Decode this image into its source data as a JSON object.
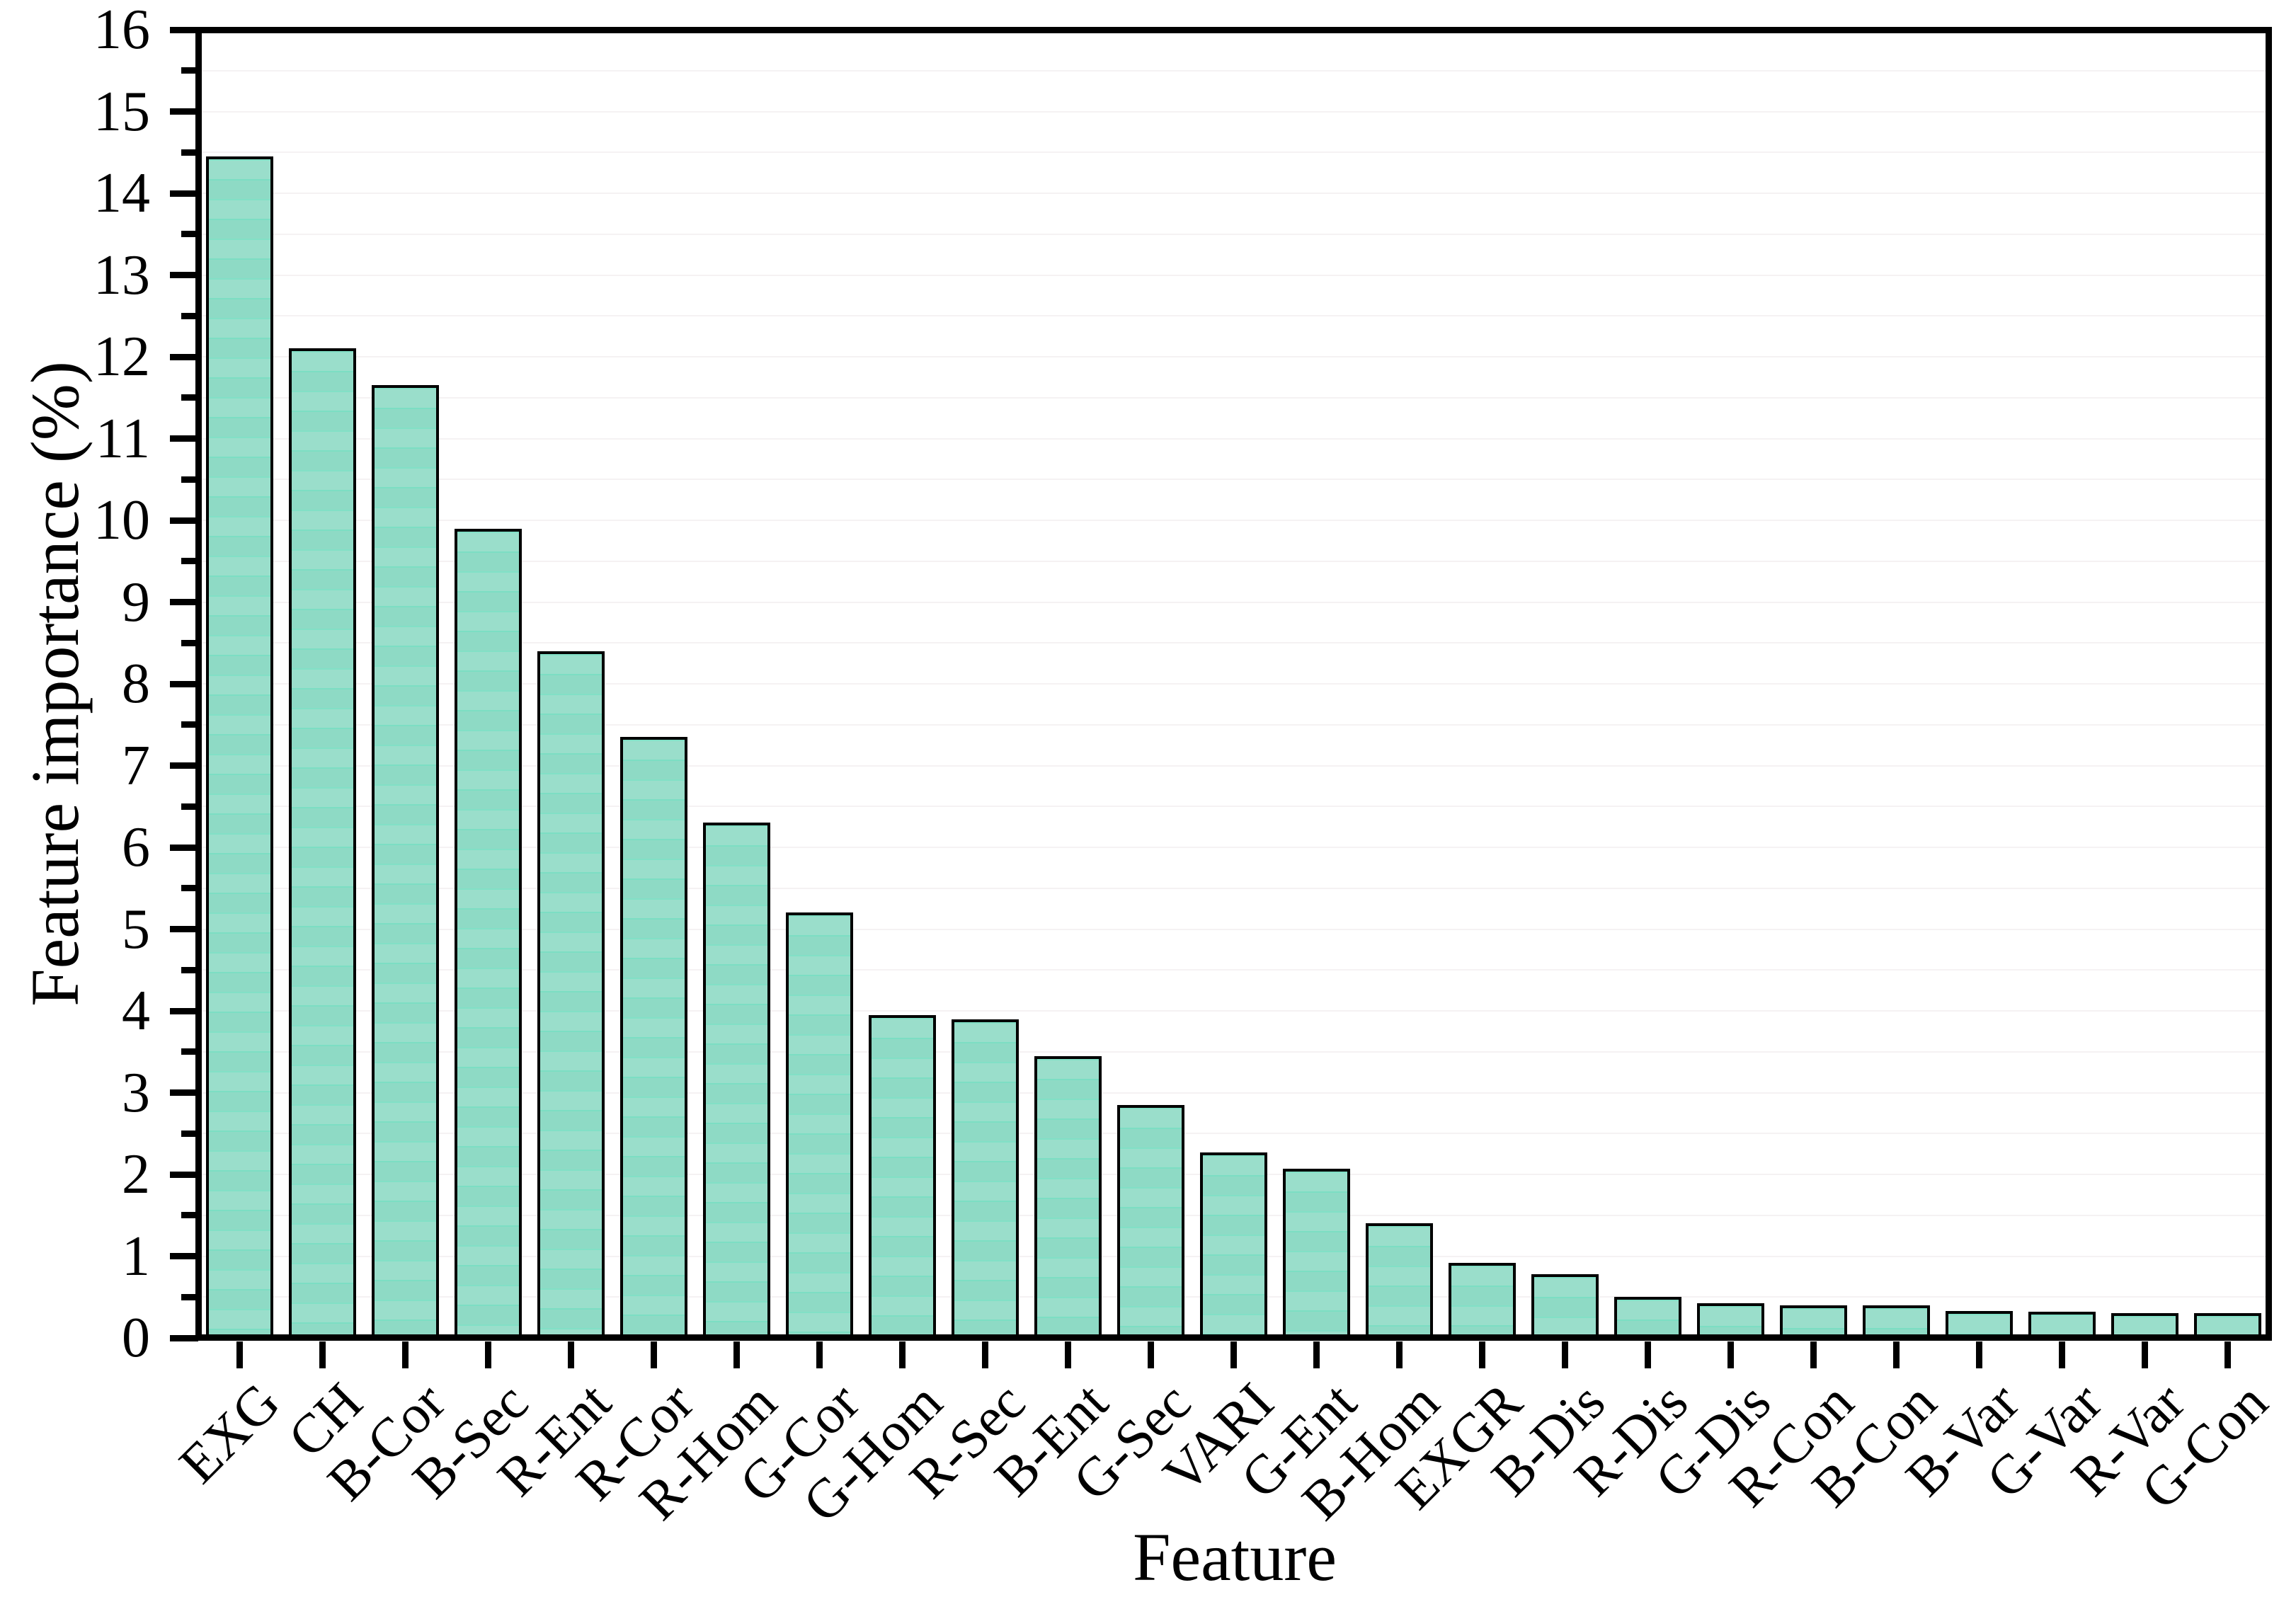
{
  "chart_data": {
    "type": "bar",
    "title": "",
    "xlabel": "Feature",
    "ylabel": "Feature importance (%)",
    "categories": [
      "EXG",
      "CH",
      "B-Cor",
      "B-Sec",
      "R-Ent",
      "R-Cor",
      "R-Hom",
      "G-Cor",
      "G-Hom",
      "R-Sec",
      "B-Ent",
      "G-Sec",
      "VARI",
      "G-Ent",
      "B-Hom",
      "EXGR",
      "B-Dis",
      "R-Dis",
      "G-Dis",
      "R-Con",
      "B-Con",
      "B-Var",
      "G-Var",
      "R-Var",
      "G-Con"
    ],
    "values": [
      14.45,
      12.1,
      11.65,
      9.9,
      8.4,
      7.35,
      6.3,
      5.2,
      3.95,
      3.9,
      3.45,
      2.85,
      2.27,
      2.07,
      1.4,
      0.92,
      0.78,
      0.5,
      0.42,
      0.4,
      0.4,
      0.33,
      0.32,
      0.3,
      0.3
    ],
    "ylim": [
      0,
      16
    ],
    "y_major_step": 1,
    "y_minor_step": 0.5,
    "y_tick_labels": [
      "0",
      "1",
      "2",
      "3",
      "4",
      "5",
      "6",
      "7",
      "8",
      "9",
      "10",
      "11",
      "12",
      "13",
      "14",
      "15",
      "16"
    ],
    "legend": "none",
    "grid": "faint horizontal lines every 0.5",
    "bar_fill_color": "#8edac5",
    "bar_band_color": "#6ee2c1",
    "bar_edge_color": "#000000",
    "axis_color": "#000000",
    "background_color": "#ffffff"
  }
}
